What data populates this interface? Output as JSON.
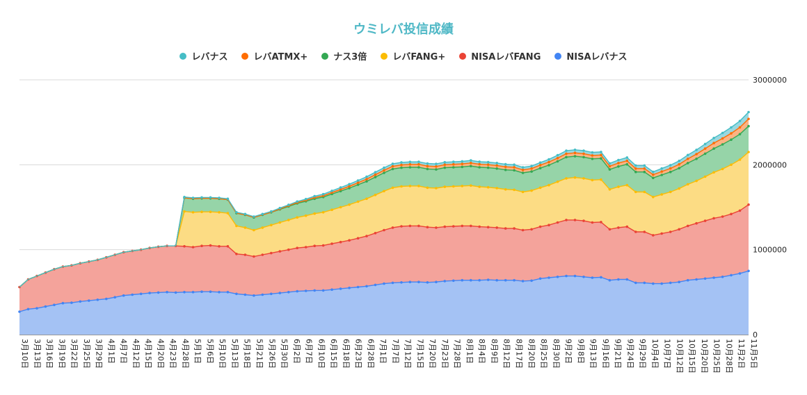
{
  "chart_data": {
    "type": "area",
    "stacked": true,
    "title": "ウミレバ投信成績",
    "legend_position": "top",
    "grid": true,
    "ylim": [
      0,
      3000000
    ],
    "y_ticks": [
      "0",
      "1000000",
      "2000000",
      "3000000"
    ],
    "x_tick_labels": [
      "3月10日",
      "3月13日",
      "3月16日",
      "3月19日",
      "3月22日",
      "3月25日",
      "3月29日",
      "4月1日",
      "4月7日",
      "4月12日",
      "4月15日",
      "4月20日",
      "4月23日",
      "4月28日",
      "5月1日",
      "5月6日",
      "5月10日",
      "5月13日",
      "5月18日",
      "5月21日",
      "5月26日",
      "5月30日",
      "6月2日",
      "6月7日",
      "6月10日",
      "6月15日",
      "6月18日",
      "6月23日",
      "6月28日",
      "7月1日",
      "7月7日",
      "7月12日",
      "7月15日",
      "7月20日",
      "7月23日",
      "7月28日",
      "8月1日",
      "8月4日",
      "8月9日",
      "8月12日",
      "8月17日",
      "8月20日",
      "8月25日",
      "8月30日",
      "9月2日",
      "9月8日",
      "9月13日",
      "9月16日",
      "9月21日",
      "9月24日",
      "9月29日",
      "10月4日",
      "10月7日",
      "10月12日",
      "10月15日",
      "10月20日",
      "10月25日",
      "10月28日",
      "11月2日",
      "11月5日"
    ],
    "series": [
      {
        "name": "NISAレバナス",
        "color": "#a4c2f4",
        "line": "#4285f4",
        "values": [
          270000,
          300000,
          310000,
          330000,
          350000,
          370000,
          375000,
          390000,
          400000,
          410000,
          420000,
          440000,
          460000,
          470000,
          480000,
          490000,
          495000,
          500000,
          495000,
          500000,
          500000,
          505000,
          505000,
          500000,
          500000,
          480000,
          470000,
          460000,
          470000,
          480000,
          490000,
          500000,
          510000,
          515000,
          520000,
          520000,
          530000,
          540000,
          550000,
          560000,
          570000,
          585000,
          600000,
          610000,
          615000,
          620000,
          620000,
          615000,
          620000,
          630000,
          635000,
          640000,
          640000,
          640000,
          645000,
          640000,
          640000,
          640000,
          630000,
          635000,
          660000,
          670000,
          680000,
          690000,
          690000,
          680000,
          670000,
          675000,
          640000,
          650000,
          650000,
          610000,
          610000,
          600000,
          600000,
          610000,
          620000,
          640000,
          650000,
          660000,
          670000,
          680000,
          700000,
          720000,
          750000
        ]
      },
      {
        "name": "NISAレバFANG",
        "color": "#f4a39b",
        "line": "#ea4335",
        "values": [
          290000,
          350000,
          380000,
          400000,
          420000,
          430000,
          440000,
          450000,
          460000,
          470000,
          490000,
          500000,
          510000,
          515000,
          520000,
          530000,
          540000,
          545000,
          550000,
          540000,
          530000,
          540000,
          545000,
          540000,
          540000,
          470000,
          470000,
          460000,
          470000,
          480000,
          490000,
          500000,
          510000,
          515000,
          525000,
          530000,
          540000,
          550000,
          560000,
          575000,
          590000,
          610000,
          630000,
          650000,
          660000,
          660000,
          660000,
          650000,
          640000,
          640000,
          640000,
          640000,
          640000,
          630000,
          620000,
          620000,
          610000,
          610000,
          600000,
          605000,
          610000,
          620000,
          640000,
          660000,
          660000,
          660000,
          650000,
          650000,
          600000,
          610000,
          620000,
          600000,
          600000,
          570000,
          590000,
          600000,
          620000,
          640000,
          660000,
          680000,
          700000,
          710000,
          720000,
          740000,
          780000
        ]
      },
      {
        "name": "レバFANG+",
        "color": "#fcdc84",
        "line": "#fbbc04",
        "values": [
          0,
          0,
          0,
          0,
          0,
          0,
          0,
          0,
          0,
          0,
          0,
          0,
          0,
          0,
          0,
          0,
          0,
          0,
          0,
          410000,
          410000,
          400000,
          395000,
          400000,
          390000,
          330000,
          320000,
          310000,
          320000,
          330000,
          340000,
          350000,
          360000,
          370000,
          380000,
          390000,
          400000,
          410000,
          420000,
          430000,
          440000,
          450000,
          460000,
          470000,
          470000,
          470000,
          470000,
          465000,
          465000,
          470000,
          470000,
          470000,
          475000,
          470000,
          470000,
          465000,
          460000,
          455000,
          450000,
          455000,
          460000,
          470000,
          480000,
          490000,
          500000,
          500000,
          500000,
          500000,
          470000,
          480000,
          490000,
          470000,
          470000,
          450000,
          460000,
          470000,
          480000,
          490000,
          500000,
          520000,
          540000,
          560000,
          580000,
          600000,
          620000
        ]
      },
      {
        "name": "ナス3倍",
        "color": "#96d4a8",
        "line": "#34a853",
        "values": [
          0,
          0,
          0,
          0,
          0,
          0,
          0,
          0,
          0,
          0,
          0,
          0,
          0,
          0,
          0,
          0,
          0,
          0,
          0,
          160000,
          160000,
          160000,
          160000,
          160000,
          160000,
          150000,
          150000,
          150000,
          150000,
          150000,
          155000,
          160000,
          165000,
          170000,
          175000,
          180000,
          185000,
          190000,
          195000,
          200000,
          205000,
          210000,
          215000,
          220000,
          220000,
          220000,
          220000,
          220000,
          220000,
          225000,
          225000,
          225000,
          230000,
          230000,
          230000,
          230000,
          230000,
          230000,
          225000,
          225000,
          230000,
          235000,
          240000,
          250000,
          250000,
          250000,
          250000,
          250000,
          235000,
          240000,
          245000,
          235000,
          235000,
          225000,
          230000,
          235000,
          240000,
          250000,
          260000,
          270000,
          280000,
          290000,
          295000,
          300000,
          305000
        ]
      },
      {
        "name": "レバATMX+",
        "color": "#fbb384",
        "line": "#ff6d01",
        "values": [
          0,
          0,
          0,
          0,
          0,
          0,
          0,
          0,
          0,
          0,
          0,
          0,
          0,
          0,
          0,
          0,
          0,
          0,
          0,
          0,
          0,
          0,
          0,
          0,
          0,
          0,
          0,
          0,
          0,
          0,
          5000,
          8000,
          10000,
          12000,
          14000,
          16000,
          18000,
          20000,
          22000,
          24000,
          26000,
          28000,
          30000,
          32000,
          33000,
          34000,
          35000,
          35000,
          35000,
          35000,
          35000,
          35000,
          36000,
          36000,
          36000,
          36000,
          36000,
          36000,
          35000,
          35000,
          36000,
          37000,
          38000,
          40000,
          40000,
          40000,
          40000,
          40000,
          38000,
          40000,
          42000,
          40000,
          40000,
          38000,
          40000,
          42000,
          45000,
          50000,
          55000,
          60000,
          65000,
          70000,
          75000,
          80000,
          85000
        ]
      },
      {
        "name": "レバナス",
        "color": "#9ad8e0",
        "line": "#46bdc6",
        "values": [
          0,
          0,
          0,
          0,
          0,
          0,
          0,
          0,
          0,
          0,
          0,
          0,
          0,
          0,
          0,
          0,
          0,
          0,
          0,
          10000,
          10000,
          10000,
          10000,
          10000,
          10000,
          10000,
          10000,
          10000,
          10000,
          10000,
          10000,
          10000,
          12000,
          14000,
          16000,
          18000,
          20000,
          22000,
          24000,
          26000,
          28000,
          30000,
          30000,
          30000,
          30000,
          30000,
          30000,
          30000,
          30000,
          30000,
          30000,
          30000,
          30000,
          30000,
          30000,
          30000,
          30000,
          30000,
          30000,
          30000,
          30000,
          32000,
          34000,
          36000,
          36000,
          36000,
          36000,
          36000,
          34000,
          36000,
          38000,
          36000,
          36000,
          34000,
          36000,
          38000,
          40000,
          45000,
          50000,
          55000,
          60000,
          65000,
          70000,
          75000,
          80000
        ]
      }
    ]
  }
}
